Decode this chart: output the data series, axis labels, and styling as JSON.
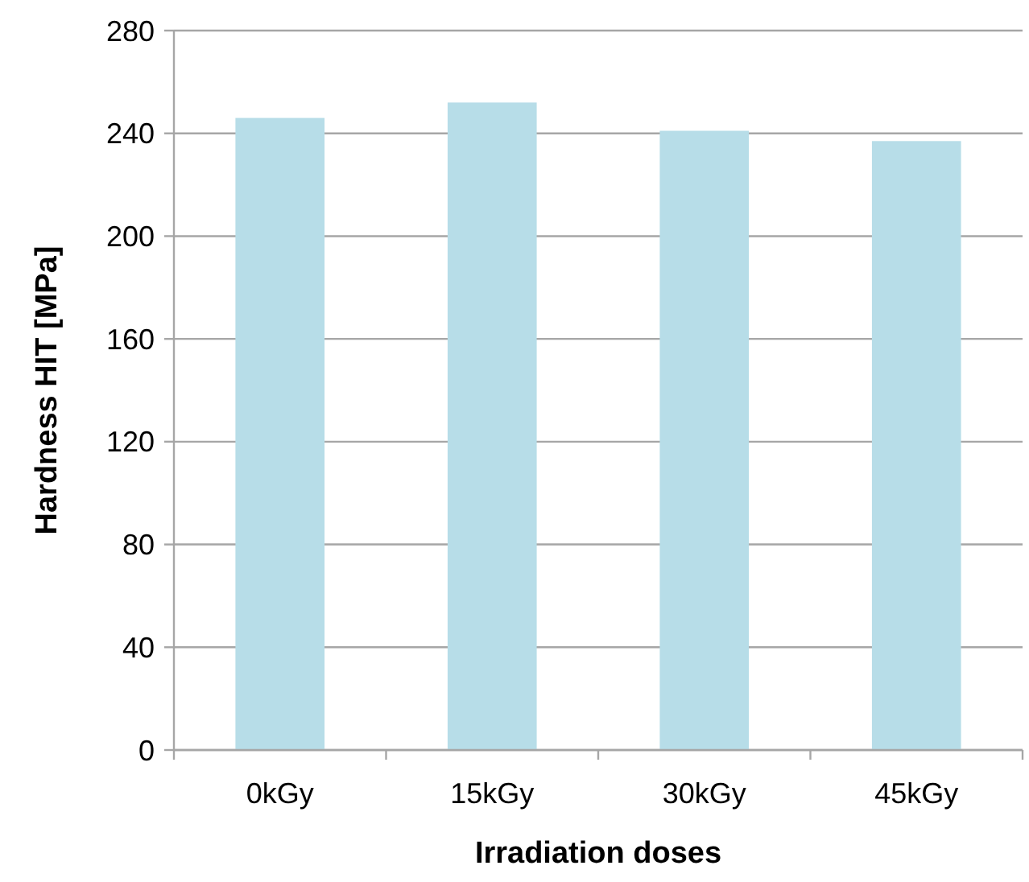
{
  "chart_data": {
    "type": "bar",
    "xlabel": "Irradiation doses",
    "ylabel": "Hardness HIT [MPa]",
    "categories": [
      "0kGy",
      "15kGy",
      "30kGy",
      "45kGy"
    ],
    "values": [
      246,
      252,
      241,
      237
    ],
    "color": "#b7dde8",
    "ylim": [
      0,
      280
    ],
    "yticks": [
      0,
      40,
      80,
      120,
      160,
      200,
      240,
      280
    ],
    "grid": "y"
  }
}
